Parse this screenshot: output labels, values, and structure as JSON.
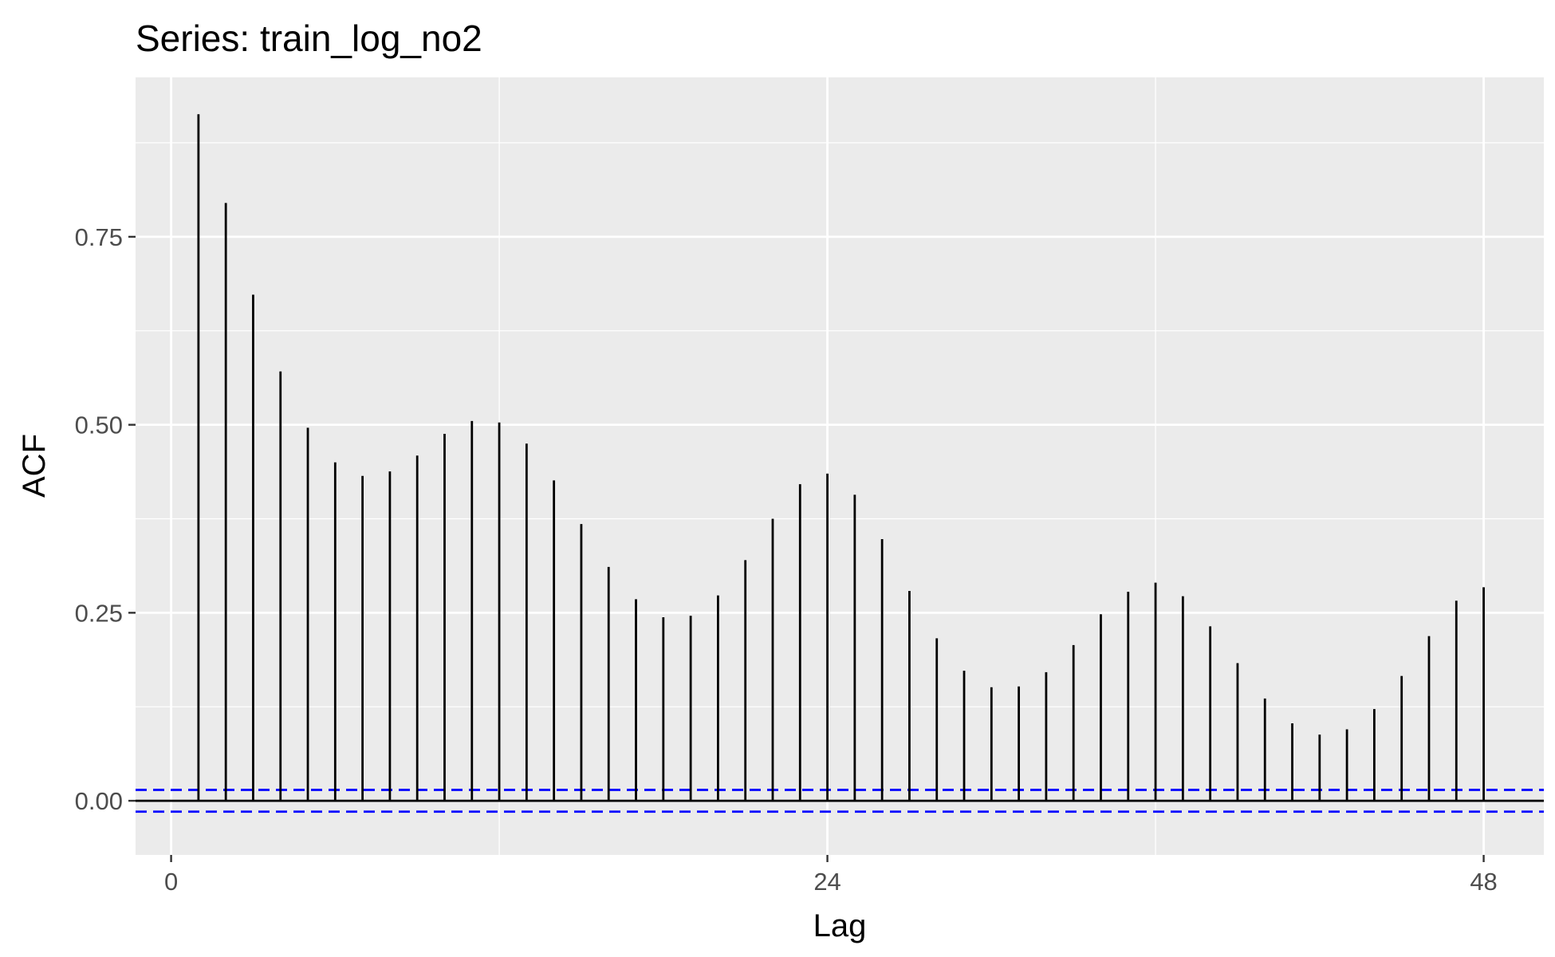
{
  "chart_data": {
    "type": "bar",
    "title": "Series: train_log_no2",
    "xlabel": "Lag",
    "ylabel": "ACF",
    "xlim": [
      -1.3,
      50.2
    ],
    "ylim": [
      -0.072,
      0.962
    ],
    "x_ticks": [
      0,
      24,
      48
    ],
    "x_tick_labels": [
      "0",
      "24",
      "48"
    ],
    "x_minor_ticks": [
      12,
      36
    ],
    "y_ticks": [
      0.0,
      0.25,
      0.5,
      0.75
    ],
    "y_tick_labels": [
      "0.00",
      "0.25",
      "0.50",
      "0.75"
    ],
    "y_minor_ticks": [
      0.125,
      0.375,
      0.625,
      0.875
    ],
    "lags": [
      1,
      2,
      3,
      4,
      5,
      6,
      7,
      8,
      9,
      10,
      11,
      12,
      13,
      14,
      15,
      16,
      17,
      18,
      19,
      20,
      21,
      22,
      23,
      24,
      25,
      26,
      27,
      28,
      29,
      30,
      31,
      32,
      33,
      34,
      35,
      36,
      37,
      38,
      39,
      40,
      41,
      42,
      43,
      44,
      45,
      46,
      47,
      48
    ],
    "values": [
      0.913,
      0.795,
      0.673,
      0.571,
      0.496,
      0.45,
      0.432,
      0.438,
      0.459,
      0.488,
      0.505,
      0.503,
      0.475,
      0.426,
      0.368,
      0.311,
      0.268,
      0.244,
      0.246,
      0.273,
      0.32,
      0.375,
      0.421,
      0.435,
      0.407,
      0.348,
      0.279,
      0.216,
      0.173,
      0.151,
      0.152,
      0.171,
      0.207,
      0.248,
      0.278,
      0.29,
      0.272,
      0.232,
      0.183,
      0.136,
      0.103,
      0.088,
      0.095,
      0.122,
      0.166,
      0.219,
      0.266,
      0.284
    ],
    "confidence_bound": 0.0145,
    "grid": true,
    "colors": {
      "panel_background": "#ebebeb",
      "gridline": "#ffffff",
      "bars": "#000000",
      "confidence_lines": "#0000ff",
      "zero_line": "#000000"
    }
  }
}
